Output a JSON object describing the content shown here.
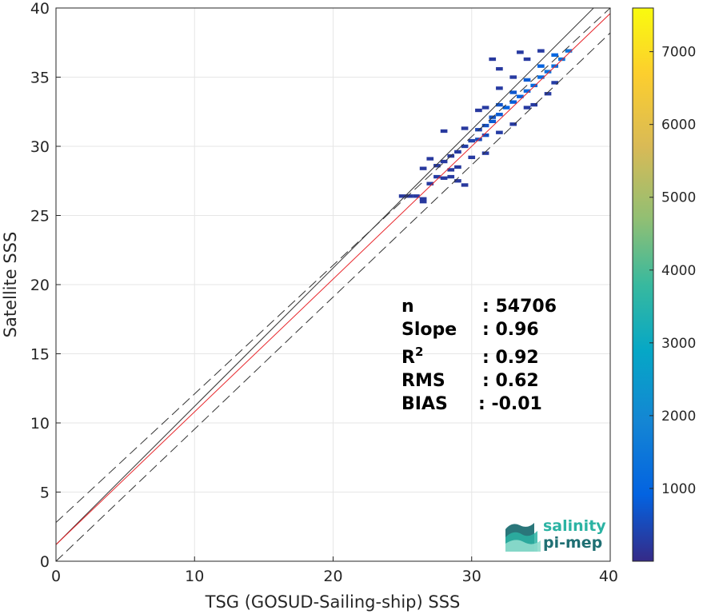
{
  "colors": {
    "identity_line": "#333333",
    "fit_line": "#e8262b",
    "dashed_line": "#333333",
    "grid": "#e6e6e6",
    "logo_primary": "#2bb3a3",
    "logo_secondary": "#1f6f73"
  },
  "logo": {
    "line1": "salinity",
    "line2": "pi-mep",
    "icon": "salinity-waves-icon"
  },
  "chart_data": {
    "type": "heatmap",
    "xlabel": "TSG (GOSUD-Sailing-ship) SSS",
    "ylabel": "Satellite SSS",
    "xlim": [
      0,
      40
    ],
    "ylim": [
      0,
      40
    ],
    "x_ticks": [
      0,
      10,
      20,
      30,
      40
    ],
    "y_ticks": [
      0,
      5,
      10,
      15,
      20,
      25,
      30,
      35,
      40
    ],
    "grid": true,
    "colorbar": {
      "colormap": "parula",
      "range": [
        0,
        7600
      ],
      "ticks": [
        1000,
        2000,
        3000,
        4000,
        5000,
        6000,
        7000
      ],
      "position": "right"
    },
    "stats": [
      {
        "label": "n",
        "sup": "",
        "value": ": 54706"
      },
      {
        "label": "Slope",
        "sup": "",
        "value": ": 0.96"
      },
      {
        "label": "R",
        "sup": "2",
        "value": ": 0.92"
      },
      {
        "label": "RMS",
        "sup": "",
        "value": ": 0.62"
      },
      {
        "label": "BIAS",
        "sup": "",
        "value": ": -0.01"
      }
    ],
    "lines": {
      "identity": {
        "slope": 1,
        "intercept": 1.2
      },
      "fit": {
        "slope": 0.96,
        "intercept": 1.2
      },
      "upper_dashed": {
        "slope": 0.93,
        "intercept": 2.8
      },
      "lower_dashed": {
        "slope": 0.955,
        "intercept": 0.0
      }
    },
    "density_cells": [
      [
        25.0,
        26.4,
        30
      ],
      [
        25.5,
        26.4,
        30
      ],
      [
        26.0,
        26.4,
        40
      ],
      [
        26.5,
        26.2,
        30
      ],
      [
        27.0,
        27.3,
        40
      ],
      [
        27.5,
        27.8,
        50
      ],
      [
        28.0,
        27.7,
        40
      ],
      [
        28.5,
        27.8,
        40
      ],
      [
        29.0,
        27.5,
        30
      ],
      [
        29.5,
        27.2,
        30
      ],
      [
        26.5,
        28.4,
        30
      ],
      [
        27.5,
        28.6,
        40
      ],
      [
        28.0,
        28.9,
        40
      ],
      [
        28.5,
        28.3,
        30
      ],
      [
        29.0,
        28.5,
        30
      ],
      [
        27.0,
        29.1,
        30
      ],
      [
        28.5,
        29.3,
        30
      ],
      [
        29.0,
        29.6,
        40
      ],
      [
        29.5,
        30.0,
        60
      ],
      [
        30.0,
        30.4,
        80
      ],
      [
        30.5,
        30.5,
        120
      ],
      [
        31.0,
        30.8,
        150
      ],
      [
        30.5,
        31.2,
        100
      ],
      [
        31.0,
        31.5,
        160
      ],
      [
        31.5,
        31.8,
        220
      ],
      [
        31.5,
        32.1,
        180
      ],
      [
        32.0,
        32.3,
        220
      ],
      [
        32.5,
        32.8,
        260
      ],
      [
        32.0,
        33.0,
        180
      ],
      [
        33.0,
        33.2,
        240
      ],
      [
        33.5,
        33.6,
        260
      ],
      [
        33.0,
        33.9,
        200
      ],
      [
        34.0,
        34.0,
        300
      ],
      [
        34.5,
        34.4,
        320
      ],
      [
        34.0,
        34.8,
        220
      ],
      [
        35.0,
        35.0,
        340
      ],
      [
        35.5,
        35.4,
        380
      ],
      [
        35.0,
        35.8,
        260
      ],
      [
        36.0,
        35.8,
        360
      ],
      [
        36.5,
        36.3,
        400
      ],
      [
        36.0,
        36.6,
        300
      ],
      [
        37.0,
        36.9,
        420
      ],
      [
        32.0,
        31.0,
        50
      ],
      [
        33.0,
        31.6,
        40
      ],
      [
        34.0,
        32.8,
        40
      ],
      [
        31.0,
        32.8,
        40
      ],
      [
        32.0,
        34.2,
        40
      ],
      [
        33.0,
        35.0,
        40
      ],
      [
        34.0,
        36.3,
        40
      ],
      [
        33.5,
        36.8,
        40
      ],
      [
        35.0,
        36.9,
        40
      ],
      [
        32.0,
        35.6,
        30
      ],
      [
        31.5,
        36.3,
        30
      ],
      [
        30.5,
        32.6,
        30
      ],
      [
        28.0,
        31.1,
        30
      ],
      [
        29.5,
        31.3,
        30
      ],
      [
        35.5,
        33.8,
        40
      ],
      [
        36.0,
        34.6,
        50
      ],
      [
        34.5,
        33.0,
        40
      ],
      [
        30.0,
        29.2,
        40
      ],
      [
        31.0,
        29.5,
        40
      ],
      [
        26.5,
        26.0,
        30
      ]
    ]
  }
}
